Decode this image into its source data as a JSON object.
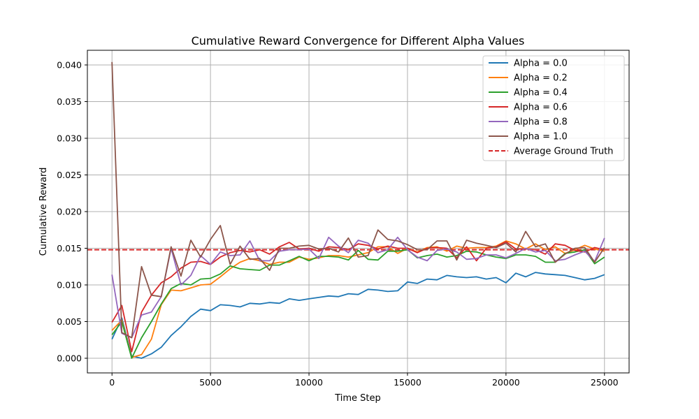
{
  "chart_data": {
    "type": "line",
    "title": "Cumulative Reward Convergence for Different Alpha Values",
    "xlabel": "Time Step",
    "ylabel": "Cumulative Reward",
    "xlim": [
      -1250,
      26250
    ],
    "ylim": [
      -0.002,
      0.042
    ],
    "xticks": [
      0,
      5000,
      10000,
      15000,
      20000,
      25000
    ],
    "yticks": [
      0.0,
      0.005,
      0.01,
      0.015,
      0.02,
      0.025,
      0.03,
      0.035,
      0.04
    ],
    "xtick_labels": [
      "0",
      "5000",
      "10000",
      "15000",
      "20000",
      "25000"
    ],
    "ytick_labels": [
      "0.000",
      "0.005",
      "0.010",
      "0.015",
      "0.020",
      "0.025",
      "0.030",
      "0.035",
      "0.040"
    ],
    "grid": true,
    "legend_position": "top-right",
    "x": [
      0,
      500,
      1000,
      1500,
      2000,
      2500,
      3000,
      3500,
      4000,
      4500,
      5000,
      5500,
      6000,
      6500,
      7000,
      7500,
      8000,
      8500,
      9000,
      9500,
      10000,
      10500,
      11000,
      11500,
      12000,
      12500,
      13000,
      13500,
      14000,
      14500,
      15000,
      15500,
      16000,
      16500,
      17000,
      17500,
      18000,
      18500,
      19000,
      19500,
      20000,
      20500,
      21000,
      21500,
      22000,
      22500,
      23000,
      23500,
      24000,
      24500,
      25000
    ],
    "series": [
      {
        "name": "Alpha = 0.0",
        "color": "#1f77b4",
        "style": "solid",
        "values": [
          0.0026,
          0.0055,
          0.0003,
          0.0,
          0.0006,
          0.0015,
          0.0031,
          0.0043,
          0.0057,
          0.0067,
          0.0065,
          0.0073,
          0.0072,
          0.007,
          0.0075,
          0.0074,
          0.0076,
          0.0075,
          0.0081,
          0.0079,
          0.0081,
          0.0083,
          0.0085,
          0.0084,
          0.0088,
          0.0087,
          0.0094,
          0.0093,
          0.0091,
          0.0092,
          0.0104,
          0.0102,
          0.0108,
          0.0107,
          0.0113,
          0.0111,
          0.011,
          0.0111,
          0.0108,
          0.011,
          0.0103,
          0.0116,
          0.0111,
          0.0117,
          0.0115,
          0.0114,
          0.0113,
          0.011,
          0.0107,
          0.0109,
          0.0114
        ]
      },
      {
        "name": "Alpha = 0.2",
        "color": "#ff7f0e",
        "style": "solid",
        "values": [
          0.0038,
          0.0052,
          0.0001,
          0.0005,
          0.0026,
          0.0073,
          0.0093,
          0.0092,
          0.0096,
          0.01,
          0.0101,
          0.0111,
          0.0122,
          0.0131,
          0.0136,
          0.0133,
          0.0128,
          0.0131,
          0.0131,
          0.0138,
          0.0135,
          0.0137,
          0.014,
          0.014,
          0.0138,
          0.0141,
          0.0144,
          0.0152,
          0.0152,
          0.0143,
          0.015,
          0.0145,
          0.0151,
          0.0152,
          0.0146,
          0.0153,
          0.015,
          0.0151,
          0.0151,
          0.0153,
          0.016,
          0.0156,
          0.0149,
          0.0156,
          0.0148,
          0.0152,
          0.0143,
          0.0148,
          0.0154,
          0.0149,
          0.0146
        ]
      },
      {
        "name": "Alpha = 0.4",
        "color": "#2ca02c",
        "style": "solid",
        "values": [
          0.0032,
          0.005,
          0.0,
          0.0028,
          0.005,
          0.0074,
          0.0095,
          0.0102,
          0.01,
          0.0108,
          0.0109,
          0.0115,
          0.0126,
          0.0122,
          0.0121,
          0.012,
          0.0127,
          0.0127,
          0.0133,
          0.0139,
          0.0133,
          0.0139,
          0.0139,
          0.0138,
          0.0134,
          0.0147,
          0.0135,
          0.0134,
          0.0146,
          0.0146,
          0.0148,
          0.0137,
          0.014,
          0.0142,
          0.0138,
          0.014,
          0.0146,
          0.0145,
          0.0141,
          0.0138,
          0.0136,
          0.0141,
          0.0141,
          0.0139,
          0.0131,
          0.0131,
          0.0143,
          0.0145,
          0.0148,
          0.0129,
          0.0138
        ]
      },
      {
        "name": "Alpha = 0.6",
        "color": "#d62728",
        "style": "solid",
        "values": [
          0.0049,
          0.0072,
          0.0009,
          0.0063,
          0.0086,
          0.0103,
          0.0111,
          0.0123,
          0.0131,
          0.0132,
          0.0128,
          0.0138,
          0.0144,
          0.0147,
          0.0145,
          0.0148,
          0.0142,
          0.0152,
          0.0158,
          0.0149,
          0.015,
          0.0146,
          0.0152,
          0.0151,
          0.0148,
          0.0156,
          0.0154,
          0.0149,
          0.0153,
          0.015,
          0.015,
          0.0144,
          0.015,
          0.0151,
          0.015,
          0.0137,
          0.0152,
          0.0133,
          0.015,
          0.0152,
          0.0159,
          0.0149,
          0.0149,
          0.0148,
          0.0142,
          0.0156,
          0.0154,
          0.0147,
          0.0145,
          0.0151,
          0.0148
        ]
      },
      {
        "name": "Alpha = 0.8",
        "color": "#9467bd",
        "style": "solid",
        "values": [
          0.0114,
          0.0034,
          0.0028,
          0.0059,
          0.0063,
          0.0084,
          0.015,
          0.01,
          0.0113,
          0.014,
          0.0128,
          0.0145,
          0.014,
          0.0141,
          0.016,
          0.0133,
          0.0133,
          0.0146,
          0.0148,
          0.0148,
          0.0149,
          0.0136,
          0.0165,
          0.0153,
          0.0144,
          0.0161,
          0.0157,
          0.0144,
          0.0148,
          0.0165,
          0.0148,
          0.0138,
          0.0133,
          0.0147,
          0.0149,
          0.0145,
          0.0135,
          0.0136,
          0.0141,
          0.0141,
          0.0137,
          0.0143,
          0.015,
          0.0145,
          0.0147,
          0.0133,
          0.0135,
          0.0141,
          0.0146,
          0.0132,
          0.0164
        ]
      },
      {
        "name": "Alpha = 1.0",
        "color": "#8c564b",
        "style": "solid",
        "values": [
          0.0404,
          0.0035,
          0.0028,
          0.0125,
          0.0086,
          0.0084,
          0.0152,
          0.0112,
          0.0161,
          0.0138,
          0.0162,
          0.0181,
          0.0128,
          0.0153,
          0.0135,
          0.0136,
          0.012,
          0.015,
          0.015,
          0.0153,
          0.0154,
          0.0149,
          0.015,
          0.0145,
          0.0164,
          0.0138,
          0.014,
          0.0175,
          0.0162,
          0.016,
          0.0155,
          0.0148,
          0.0148,
          0.016,
          0.016,
          0.0134,
          0.0161,
          0.0157,
          0.0154,
          0.0151,
          0.0157,
          0.0145,
          0.0173,
          0.0152,
          0.0156,
          0.0131,
          0.0142,
          0.015,
          0.0151,
          0.0131,
          0.0151
        ]
      }
    ],
    "reference_lines": [
      {
        "name": "Average Ground Truth",
        "color": "#d62728",
        "style": "dashed",
        "y": 0.0148
      }
    ]
  }
}
